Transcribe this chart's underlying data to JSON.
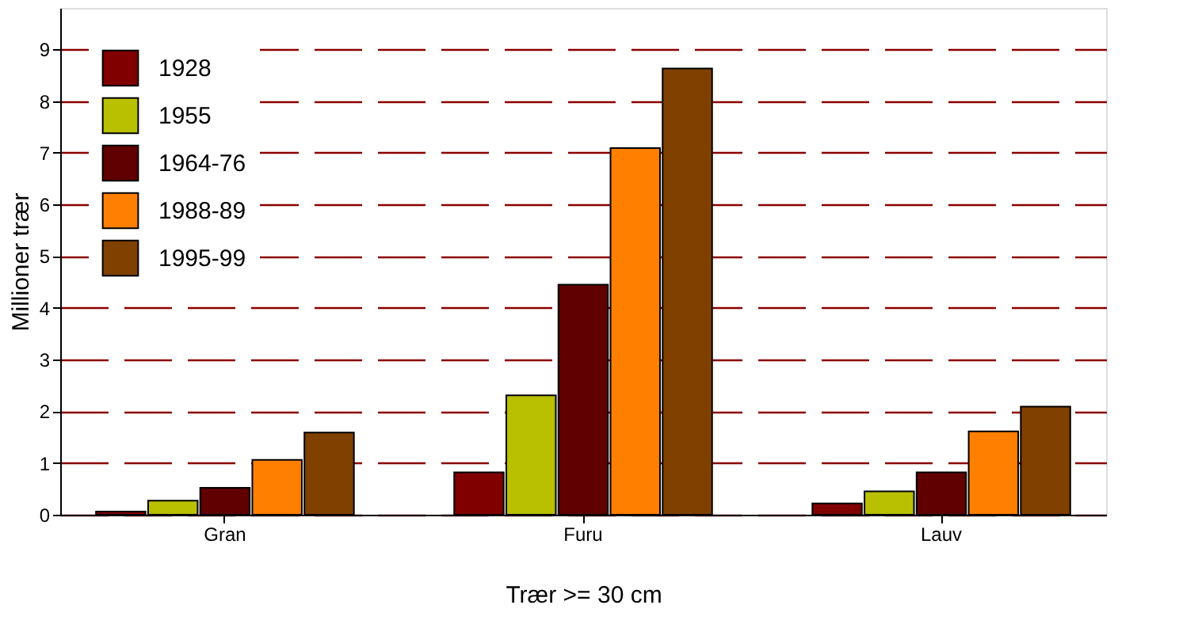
{
  "chart_data": {
    "type": "bar",
    "xlabel": "Trær >= 30 cm",
    "ylabel": "Millioner trær",
    "categories": [
      "Gran",
      "Furu",
      "Lauv"
    ],
    "series": [
      {
        "name": "1928",
        "color": "#800000",
        "values": [
          0.06,
          0.82,
          0.22
        ]
      },
      {
        "name": "1955",
        "color": "#b8c000",
        "values": [
          0.27,
          2.31,
          0.45
        ]
      },
      {
        "name": "1964-76",
        "color": "#600000",
        "values": [
          0.52,
          4.45,
          0.82
        ]
      },
      {
        "name": "1988-89",
        "color": "#ff8000",
        "values": [
          1.06,
          7.09,
          1.61
        ]
      },
      {
        "name": "1995-99",
        "color": "#804000",
        "values": [
          1.59,
          8.63,
          2.09
        ]
      }
    ],
    "ylim": [
      0,
      9.8
    ],
    "yticks": [
      0,
      1,
      2,
      3,
      4,
      5,
      6,
      7,
      8,
      9
    ],
    "grid": "y",
    "legend": "top left"
  }
}
